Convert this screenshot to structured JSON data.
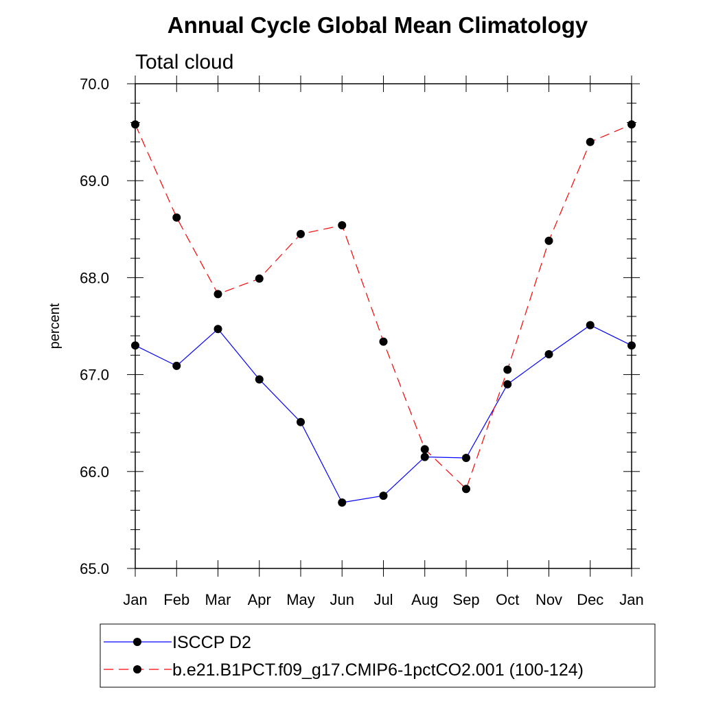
{
  "chart_data": {
    "type": "line",
    "title": "Annual Cycle Global Mean Climatology",
    "subtitle": "Total cloud",
    "xlabel": "",
    "ylabel": "percent",
    "categories": [
      "Jan",
      "Feb",
      "Mar",
      "Apr",
      "May",
      "Jun",
      "Jul",
      "Aug",
      "Sep",
      "Oct",
      "Nov",
      "Dec",
      "Jan"
    ],
    "ylim": [
      65.0,
      70.0
    ],
    "yticks": [
      "65.0",
      "66.0",
      "67.0",
      "68.0",
      "69.0",
      "70.0"
    ],
    "grid": false,
    "legend_position": "bottom",
    "series": [
      {
        "name": "ISCCP D2",
        "color": "#0000ff",
        "line_style": "solid",
        "marker": "filled-circle",
        "values": [
          67.3,
          67.09,
          67.47,
          66.95,
          66.51,
          65.68,
          65.75,
          66.15,
          66.14,
          66.9,
          67.21,
          67.51,
          67.3
        ]
      },
      {
        "name": "b.e21.B1PCT.f09_g17.CMIP6-1pctCO2.001 (100-124)",
        "color": "#ff0000",
        "line_style": "dashed",
        "marker": "filled-circle",
        "values": [
          69.58,
          68.62,
          67.83,
          67.99,
          68.45,
          68.54,
          67.34,
          66.23,
          65.82,
          67.05,
          68.38,
          69.4,
          69.58
        ]
      }
    ]
  }
}
